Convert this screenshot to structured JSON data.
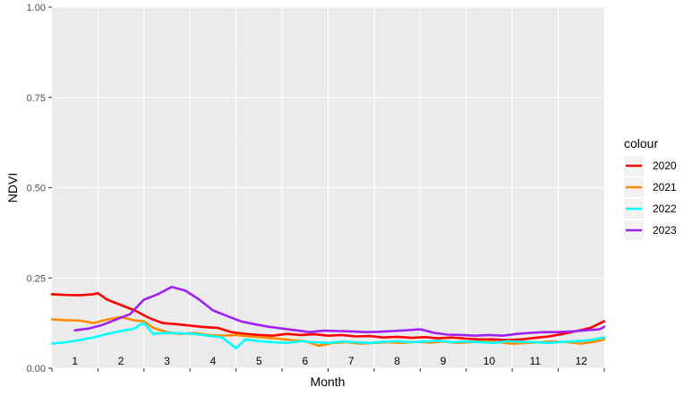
{
  "chart_data": {
    "type": "line",
    "xlabel": "Month",
    "ylabel": "NDVI",
    "ylim": [
      0,
      1
    ],
    "y_ticks": [
      "0.00",
      "0.25",
      "0.50",
      "0.75",
      "1.00"
    ],
    "xlim": [
      0,
      12
    ],
    "months": [
      "1",
      "2",
      "3",
      "4",
      "5",
      "6",
      "7",
      "8",
      "9",
      "10",
      "11",
      "12"
    ],
    "grid": true,
    "legend": {
      "title": "colour",
      "position": "right"
    },
    "series": [
      {
        "name": "2020",
        "color": "#FF0000",
        "x": [
          0.0,
          0.3,
          0.6,
          0.9,
          1.0,
          1.2,
          1.5,
          1.8,
          2.1,
          2.4,
          2.7,
          3.0,
          3.3,
          3.6,
          3.9,
          4.2,
          4.5,
          4.8,
          5.1,
          5.4,
          5.7,
          6.0,
          6.3,
          6.6,
          6.9,
          7.2,
          7.5,
          7.8,
          8.1,
          8.4,
          8.7,
          9.0,
          9.3,
          9.6,
          9.9,
          10.2,
          10.5,
          10.8,
          11.1,
          11.4,
          11.7,
          12.0
        ],
        "y": [
          0.205,
          0.203,
          0.202,
          0.205,
          0.208,
          0.19,
          0.175,
          0.16,
          0.14,
          0.125,
          0.122,
          0.118,
          0.114,
          0.112,
          0.1,
          0.095,
          0.092,
          0.09,
          0.095,
          0.092,
          0.094,
          0.09,
          0.092,
          0.088,
          0.089,
          0.085,
          0.087,
          0.084,
          0.086,
          0.083,
          0.085,
          0.082,
          0.08,
          0.08,
          0.078,
          0.08,
          0.084,
          0.088,
          0.095,
          0.103,
          0.112,
          0.13
        ]
      },
      {
        "name": "2021",
        "color": "#FF8C00",
        "x": [
          0.0,
          0.3,
          0.6,
          0.9,
          1.2,
          1.5,
          1.8,
          2.0,
          2.2,
          2.5,
          2.8,
          3.1,
          3.4,
          3.7,
          4.0,
          4.3,
          4.6,
          4.9,
          5.2,
          5.5,
          5.8,
          6.1,
          6.4,
          6.7,
          7.0,
          7.3,
          7.6,
          7.9,
          8.2,
          8.5,
          8.8,
          9.1,
          9.4,
          9.7,
          10.0,
          10.3,
          10.6,
          10.9,
          11.2,
          11.5,
          11.8,
          12.0
        ],
        "y": [
          0.135,
          0.133,
          0.132,
          0.125,
          0.135,
          0.142,
          0.132,
          0.13,
          0.112,
          0.1,
          0.095,
          0.098,
          0.092,
          0.09,
          0.092,
          0.088,
          0.085,
          0.082,
          0.078,
          0.075,
          0.062,
          0.07,
          0.072,
          0.068,
          0.07,
          0.072,
          0.07,
          0.073,
          0.071,
          0.074,
          0.07,
          0.072,
          0.075,
          0.072,
          0.068,
          0.07,
          0.072,
          0.074,
          0.072,
          0.068,
          0.074,
          0.08
        ]
      },
      {
        "name": "2022",
        "color": "#00FFFF",
        "x": [
          0.0,
          0.3,
          0.6,
          0.9,
          1.2,
          1.5,
          1.8,
          1.9,
          2.0,
          2.2,
          2.5,
          2.8,
          3.1,
          3.4,
          3.7,
          3.9,
          4.0,
          4.2,
          4.5,
          4.8,
          5.1,
          5.4,
          5.7,
          6.0,
          6.3,
          6.6,
          6.9,
          7.2,
          7.5,
          7.8,
          8.1,
          8.4,
          8.7,
          9.0,
          9.3,
          9.6,
          9.9,
          10.2,
          10.5,
          10.8,
          11.1,
          11.4,
          11.7,
          12.0
        ],
        "y": [
          0.068,
          0.072,
          0.078,
          0.085,
          0.095,
          0.103,
          0.11,
          0.12,
          0.125,
          0.095,
          0.098,
          0.097,
          0.095,
          0.09,
          0.085,
          0.065,
          0.055,
          0.08,
          0.075,
          0.072,
          0.07,
          0.075,
          0.072,
          0.07,
          0.074,
          0.072,
          0.07,
          0.073,
          0.075,
          0.072,
          0.074,
          0.076,
          0.072,
          0.074,
          0.072,
          0.07,
          0.075,
          0.073,
          0.072,
          0.07,
          0.073,
          0.075,
          0.078,
          0.085
        ]
      },
      {
        "name": "2023",
        "color": "#A020F0",
        "x": [
          0.5,
          0.8,
          1.1,
          1.4,
          1.7,
          2.0,
          2.3,
          2.6,
          2.9,
          3.2,
          3.5,
          3.8,
          4.1,
          4.4,
          4.7,
          5.0,
          5.3,
          5.6,
          5.9,
          6.2,
          6.5,
          6.8,
          7.1,
          7.4,
          7.7,
          8.0,
          8.3,
          8.6,
          8.9,
          9.2,
          9.5,
          9.8,
          10.1,
          10.4,
          10.7,
          11.0,
          11.3,
          11.6,
          11.9,
          12.0
        ],
        "y": [
          0.105,
          0.11,
          0.12,
          0.135,
          0.15,
          0.19,
          0.205,
          0.225,
          0.215,
          0.19,
          0.16,
          0.145,
          0.13,
          0.122,
          0.115,
          0.11,
          0.105,
          0.1,
          0.104,
          0.103,
          0.102,
          0.1,
          0.101,
          0.103,
          0.105,
          0.108,
          0.098,
          0.093,
          0.092,
          0.09,
          0.092,
          0.09,
          0.095,
          0.098,
          0.1,
          0.1,
          0.102,
          0.105,
          0.108,
          0.115
        ]
      }
    ]
  }
}
